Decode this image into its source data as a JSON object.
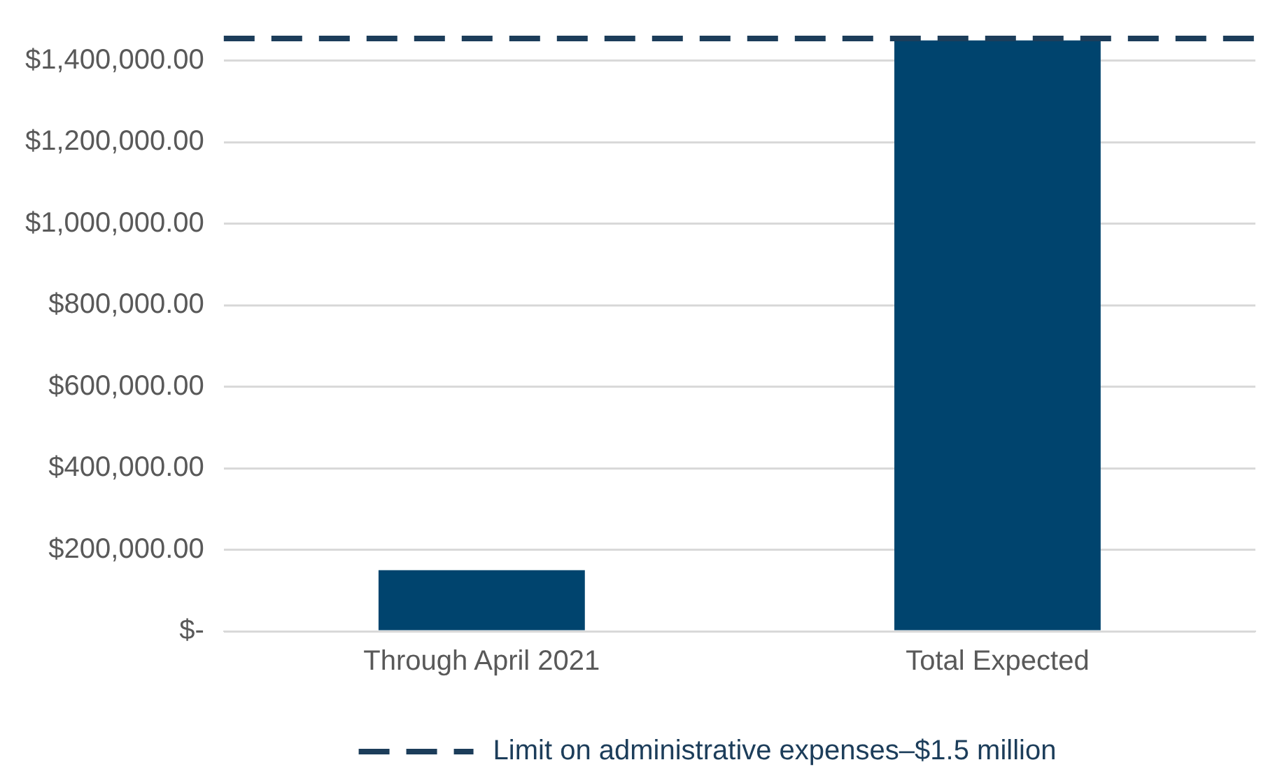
{
  "chart_data": {
    "type": "bar",
    "categories": [
      "Through April 2021",
      "Total Expected"
    ],
    "values": [
      150000,
      1450000
    ],
    "color": "#00446e",
    "ylim": [
      0,
      1460000
    ],
    "yticks": [
      {
        "value": 0,
        "label": "$-"
      },
      {
        "value": 200000,
        "label": "$200,000.00"
      },
      {
        "value": 400000,
        "label": "$400,000.00"
      },
      {
        "value": 600000,
        "label": "$600,000.00"
      },
      {
        "value": 800000,
        "label": "$800,000.00"
      },
      {
        "value": 1000000,
        "label": "$1,000,000.00"
      },
      {
        "value": 1200000,
        "label": "$1,200,000.00"
      },
      {
        "value": 1400000,
        "label": "$1,400,000.00"
      }
    ],
    "grid": "y",
    "legend": "bottom",
    "ref_lines": [
      {
        "axis": "y",
        "value": 1455000,
        "label": "Limit on administrative expenses–$1.5 million",
        "color": "#1c3d5a",
        "line_style": "dashed"
      }
    ]
  }
}
